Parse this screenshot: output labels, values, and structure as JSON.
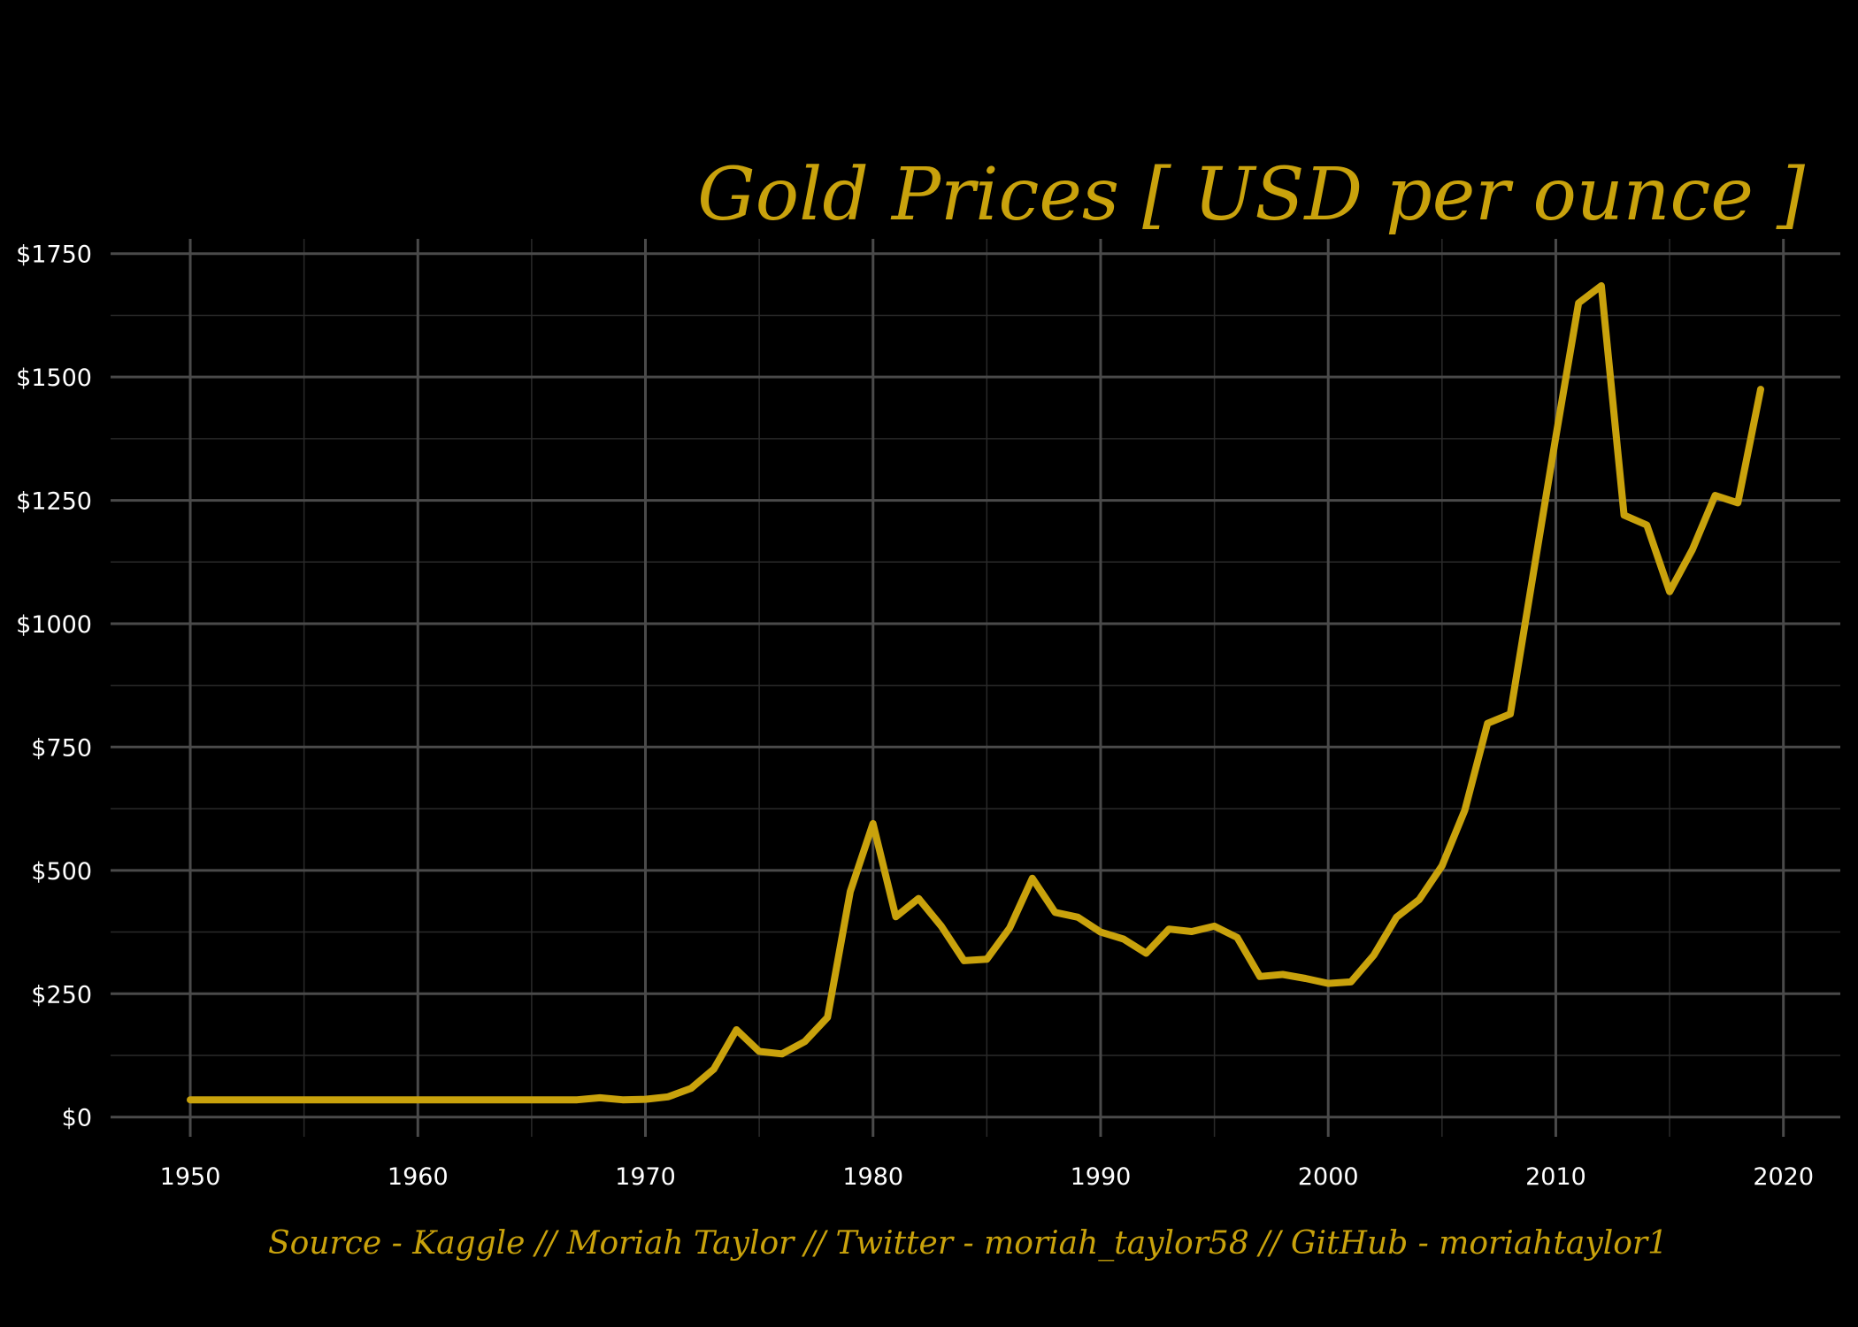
{
  "colors": {
    "background": "#000000",
    "line": "#C9A20C",
    "grid_major": "#4a4a4a",
    "grid_minor": "#2a2a2a",
    "tick_text": "#ffffff"
  },
  "chart_data": {
    "type": "line",
    "title": "Gold Prices  [ USD per ounce ]",
    "caption": "Source - Kaggle  //  Moriah Taylor  //  Twitter - moriah_taylor58  //  GitHub - moriahtaylor1",
    "xlabel": "",
    "ylabel": "",
    "xlim": [
      1946.5,
      2022.5
    ],
    "ylim": [
      -40,
      1780
    ],
    "x_ticks": [
      1950,
      1960,
      1970,
      1980,
      1990,
      2000,
      2010,
      2020
    ],
    "x_tick_labels": [
      "1950",
      "1960",
      "1970",
      "1980",
      "1990",
      "2000",
      "2010",
      "2020"
    ],
    "y_ticks": [
      0,
      250,
      500,
      750,
      1000,
      1250,
      1500,
      1750
    ],
    "y_tick_labels": [
      "$0",
      "$250",
      "$500",
      "$750",
      "$1000",
      "$1250",
      "$1500",
      "$1750"
    ],
    "grid": true,
    "legend": "none",
    "series": [
      {
        "x": [
          1950,
          1951,
          1952,
          1953,
          1954,
          1955,
          1956,
          1957,
          1958,
          1959,
          1960,
          1961,
          1962,
          1963,
          1964,
          1965,
          1966,
          1967,
          1968,
          1969,
          1970,
          1971,
          1972,
          1973,
          1974,
          1975,
          1976,
          1977,
          1978,
          1979,
          1980,
          1981,
          1982,
          1983,
          1984,
          1985,
          1986,
          1987,
          1988,
          1989,
          1990,
          1991,
          1992,
          1993,
          1994,
          1995,
          1996,
          1997,
          1998,
          1999,
          2000,
          2001,
          2002,
          2003,
          2004,
          2005,
          2006,
          2007,
          2008,
          2009,
          2010,
          2011,
          2012,
          2013,
          2014,
          2015,
          2016,
          2017,
          2018,
          2019
        ],
        "values": [
          35,
          35,
          35,
          35,
          35,
          35,
          35,
          35,
          35,
          35,
          35,
          35,
          35,
          35,
          35,
          35,
          35,
          35,
          39,
          35,
          36,
          41,
          58,
          97,
          177,
          133,
          128,
          153,
          202,
          457,
          595,
          406,
          443,
          387,
          317,
          320,
          383,
          484,
          415,
          405,
          375,
          361,
          332,
          381,
          376,
          387,
          364,
          285,
          289,
          281,
          271,
          274,
          328,
          405,
          441,
          509,
          622,
          798,
          817,
          1098,
          1379,
          1650,
          1685,
          1220,
          1200,
          1065,
          1150,
          1260,
          1245,
          1475
        ]
      }
    ]
  }
}
